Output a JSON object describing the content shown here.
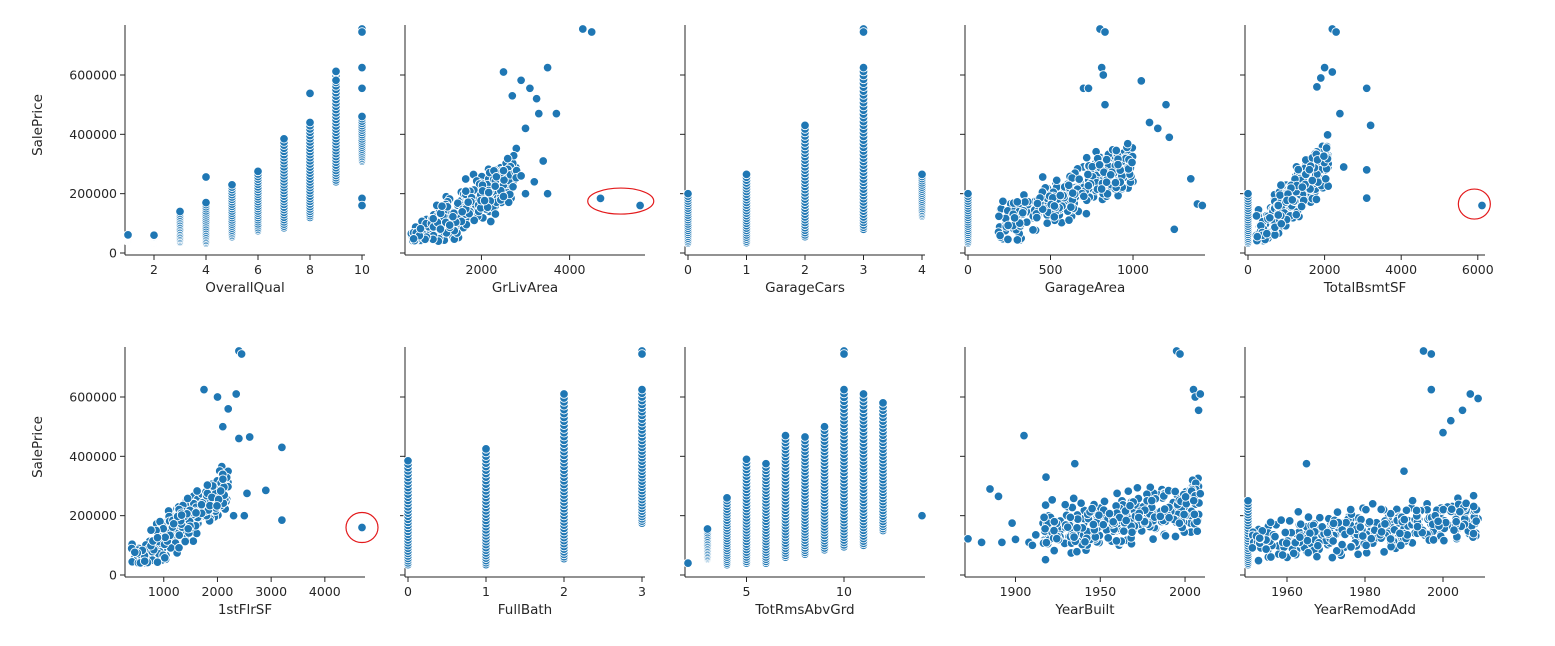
{
  "colors": {
    "points": "#1f77b4",
    "point_edge": "#ffffff",
    "highlight": "#e31a1c"
  },
  "chart_data": {
    "type": "scatter",
    "y_label": "SalePrice",
    "y_range": [
      0,
      755000
    ],
    "y_ticks": [
      0,
      200000,
      400000,
      600000
    ],
    "y_tick_labels": [
      "0",
      "200000",
      "400000",
      "600000"
    ],
    "panels": [
      {
        "x_label": "OverallQual",
        "x_range": [
          1,
          10
        ],
        "x_ticks": [
          2,
          4,
          6,
          8,
          10
        ],
        "x_tick_labels": [
          "2",
          "4",
          "6",
          "8",
          "10"
        ],
        "columns": [
          {
            "x": 1,
            "y_min": 40000,
            "y_max": 61000
          },
          {
            "x": 2,
            "y_min": 35000,
            "y_max": 60000
          },
          {
            "x": 3,
            "y_min": 37000,
            "y_max": 140000
          },
          {
            "x": 4,
            "y_min": 34000,
            "y_max": 170000
          },
          {
            "x": 5,
            "y_min": 55000,
            "y_max": 230000
          },
          {
            "x": 6,
            "y_min": 75000,
            "y_max": 275000
          },
          {
            "x": 7,
            "y_min": 85000,
            "y_max": 385000
          },
          {
            "x": 8,
            "y_min": 120000,
            "y_max": 440000
          },
          {
            "x": 9,
            "y_min": 240000,
            "y_max": 610000
          },
          {
            "x": 10,
            "y_min": 310000,
            "y_max": 460000
          }
        ],
        "points": [
          [
            4,
            256000
          ],
          [
            8,
            538000
          ],
          [
            9,
            612000
          ],
          [
            9,
            582000
          ],
          [
            10,
            755000
          ],
          [
            10,
            745000
          ],
          [
            10,
            625000
          ],
          [
            10,
            555000
          ],
          [
            10,
            184000
          ],
          [
            10,
            160000
          ]
        ]
      },
      {
        "x_label": "GrLivArea",
        "x_range": [
          334,
          5642
        ],
        "x_ticks": [
          2000,
          4000
        ],
        "x_tick_labels": [
          "2000",
          "4000"
        ],
        "cloud": {
          "x_range": [
            400,
            2800
          ],
          "y_intercept": 20000,
          "y_slope": 100,
          "spread": 55000
        },
        "points": [
          [
            2500,
            610000
          ],
          [
            2900,
            582000
          ],
          [
            3100,
            555000
          ],
          [
            3500,
            625000
          ],
          [
            3250,
            520000
          ],
          [
            2700,
            530000
          ],
          [
            3000,
            420000
          ],
          [
            3300,
            470000
          ],
          [
            3700,
            470000
          ],
          [
            3400,
            310000
          ],
          [
            3200,
            240000
          ],
          [
            3500,
            200000
          ],
          [
            2900,
            260000
          ],
          [
            3000,
            200000
          ],
          [
            4300,
            755000
          ],
          [
            4500,
            745000
          ],
          [
            4700,
            184000
          ],
          [
            5600,
            160000
          ]
        ],
        "highlight": {
          "x": 5160,
          "y": 175000
        }
      },
      {
        "x_label": "GarageCars",
        "x_range": [
          0,
          4
        ],
        "x_ticks": [
          0,
          1,
          2,
          3,
          4
        ],
        "x_tick_labels": [
          "0",
          "1",
          "2",
          "3",
          "4"
        ],
        "columns": [
          {
            "x": 0,
            "y_min": 34000,
            "y_max": 200000
          },
          {
            "x": 1,
            "y_min": 35000,
            "y_max": 265000
          },
          {
            "x": 2,
            "y_min": 55000,
            "y_max": 430000
          },
          {
            "x": 3,
            "y_min": 80000,
            "y_max": 625000
          },
          {
            "x": 4,
            "y_min": 125000,
            "y_max": 265000
          }
        ],
        "points": [
          [
            3,
            755000
          ],
          [
            3,
            745000
          ]
        ]
      },
      {
        "x_label": "GarageArea",
        "x_range": [
          0,
          1418
        ],
        "x_ticks": [
          0,
          500,
          1000
        ],
        "x_tick_labels": [
          "0",
          "500",
          "1000"
        ],
        "columns": [
          {
            "x": 0,
            "y_min": 34000,
            "y_max": 200000
          }
        ],
        "cloud": {
          "x_range": [
            180,
            1000
          ],
          "y_intercept": 40000,
          "y_slope": 260,
          "spread": 60000
        },
        "points": [
          [
            800,
            755000
          ],
          [
            830,
            745000
          ],
          [
            810,
            625000
          ],
          [
            820,
            600000
          ],
          [
            700,
            555000
          ],
          [
            730,
            555000
          ],
          [
            1050,
            580000
          ],
          [
            830,
            500000
          ],
          [
            1200,
            500000
          ],
          [
            1100,
            440000
          ],
          [
            1150,
            420000
          ],
          [
            1220,
            390000
          ],
          [
            1350,
            250000
          ],
          [
            1390,
            165000
          ],
          [
            1420,
            160000
          ],
          [
            1250,
            80000
          ]
        ]
      },
      {
        "x_label": "TotalBsmtSF",
        "x_range": [
          0,
          6110
        ],
        "x_ticks": [
          0,
          2000,
          4000,
          6000
        ],
        "x_tick_labels": [
          "0",
          "2000",
          "4000",
          "6000"
        ],
        "columns": [
          {
            "x": 0,
            "y_min": 34000,
            "y_max": 200000
          }
        ],
        "cloud": {
          "x_range": [
            200,
            2100
          ],
          "y_intercept": 20000,
          "y_slope": 140,
          "spread": 55000
        },
        "points": [
          [
            2200,
            755000
          ],
          [
            2300,
            745000
          ],
          [
            2000,
            625000
          ],
          [
            2200,
            610000
          ],
          [
            1900,
            590000
          ],
          [
            1800,
            560000
          ],
          [
            3100,
            555000
          ],
          [
            2400,
            470000
          ],
          [
            3200,
            430000
          ],
          [
            2500,
            290000
          ],
          [
            3100,
            280000
          ],
          [
            3100,
            185000
          ],
          [
            6110,
            160000
          ]
        ],
        "highlight": {
          "x": 5910,
          "y": 165000
        }
      },
      {
        "x_label": "1stFlrSF",
        "x_range": [
          334,
          4692
        ],
        "x_ticks": [
          1000,
          2000,
          3000,
          4000
        ],
        "x_tick_labels": [
          "1000",
          "2000",
          "3000",
          "4000"
        ],
        "cloud": {
          "x_range": [
            400,
            2200
          ],
          "y_intercept": 10000,
          "y_slope": 160,
          "spread": 55000
        },
        "points": [
          [
            2400,
            755000
          ],
          [
            2450,
            745000
          ],
          [
            1750,
            625000
          ],
          [
            2000,
            600000
          ],
          [
            2350,
            610000
          ],
          [
            2200,
            560000
          ],
          [
            2100,
            500000
          ],
          [
            2400,
            460000
          ],
          [
            2600,
            465000
          ],
          [
            3200,
            430000
          ],
          [
            2900,
            285000
          ],
          [
            2550,
            275000
          ],
          [
            2300,
            200000
          ],
          [
            2500,
            200000
          ],
          [
            3200,
            185000
          ],
          [
            4692,
            160000
          ]
        ],
        "highlight": {
          "x": 4692,
          "y": 160000
        }
      },
      {
        "x_label": "FullBath",
        "x_range": [
          0,
          3
        ],
        "x_ticks": [
          0,
          1,
          2,
          3
        ],
        "x_tick_labels": [
          "0",
          "1",
          "2",
          "3"
        ],
        "columns": [
          {
            "x": 0,
            "y_min": 35000,
            "y_max": 385000
          },
          {
            "x": 1,
            "y_min": 35000,
            "y_max": 425000
          },
          {
            "x": 2,
            "y_min": 55000,
            "y_max": 610000
          },
          {
            "x": 3,
            "y_min": 175000,
            "y_max": 625000
          }
        ],
        "points": [
          [
            3,
            755000
          ],
          [
            3,
            745000
          ]
        ]
      },
      {
        "x_label": "TotRmsAbvGrd",
        "x_range": [
          2,
          14
        ],
        "x_ticks": [
          5,
          10
        ],
        "x_tick_labels": [
          "5",
          "10"
        ],
        "columns": [
          {
            "x": 3,
            "y_min": 55000,
            "y_max": 155000
          },
          {
            "x": 4,
            "y_min": 35000,
            "y_max": 260000
          },
          {
            "x": 5,
            "y_min": 40000,
            "y_max": 390000
          },
          {
            "x": 6,
            "y_min": 40000,
            "y_max": 375000
          },
          {
            "x": 7,
            "y_min": 60000,
            "y_max": 470000
          },
          {
            "x": 8,
            "y_min": 70000,
            "y_max": 465000
          },
          {
            "x": 9,
            "y_min": 85000,
            "y_max": 500000
          },
          {
            "x": 10,
            "y_min": 95000,
            "y_max": 625000
          },
          {
            "x": 11,
            "y_min": 100000,
            "y_max": 610000
          },
          {
            "x": 12,
            "y_min": 150000,
            "y_max": 580000
          }
        ],
        "points": [
          [
            2,
            40000
          ],
          [
            10,
            755000
          ],
          [
            10,
            745000
          ],
          [
            14,
            200000
          ]
        ]
      },
      {
        "x_label": "YearBuilt",
        "x_range": [
          1872,
          2010
        ],
        "x_ticks": [
          1900,
          1950,
          2000
        ],
        "x_tick_labels": [
          "1900",
          "1950",
          "2000"
        ],
        "cloud": {
          "x_range": [
            1915,
            2009
          ],
          "y_intercept": 110000,
          "y_slope": 900,
          "spread": 60000
        },
        "points": [
          [
            1872,
            122000
          ],
          [
            1880,
            110000
          ],
          [
            1885,
            290000
          ],
          [
            1890,
            265000
          ],
          [
            1892,
            110000
          ],
          [
            1898,
            175000
          ],
          [
            1900,
            120000
          ],
          [
            1905,
            470000
          ],
          [
            1908,
            110000
          ],
          [
            1910,
            100000
          ],
          [
            1912,
            135000
          ],
          [
            1918,
            330000
          ],
          [
            1935,
            375000
          ],
          [
            1995,
            755000
          ],
          [
            1997,
            745000
          ],
          [
            2005,
            625000
          ],
          [
            2006,
            600000
          ],
          [
            2008,
            555000
          ],
          [
            2009,
            610000
          ]
        ]
      },
      {
        "x_label": "YearRemodAdd",
        "x_range": [
          1950,
          2010
        ],
        "x_ticks": [
          1960,
          1980,
          2000
        ],
        "x_tick_labels": [
          "1960",
          "1980",
          "2000"
        ],
        "columns": [
          {
            "x": 1950,
            "y_min": 35000,
            "y_max": 250000
          }
        ],
        "cloud": {
          "x_range": [
            1951,
            2009
          ],
          "y_intercept": 100000,
          "y_slope": 1600,
          "spread": 55000
        },
        "points": [
          [
            1965,
            375000
          ],
          [
            1990,
            350000
          ],
          [
            1995,
            755000
          ],
          [
            1997,
            745000
          ],
          [
            1997,
            625000
          ],
          [
            2000,
            480000
          ],
          [
            2002,
            520000
          ],
          [
            2005,
            555000
          ],
          [
            2007,
            610000
          ],
          [
            2009,
            595000
          ]
        ]
      }
    ]
  }
}
